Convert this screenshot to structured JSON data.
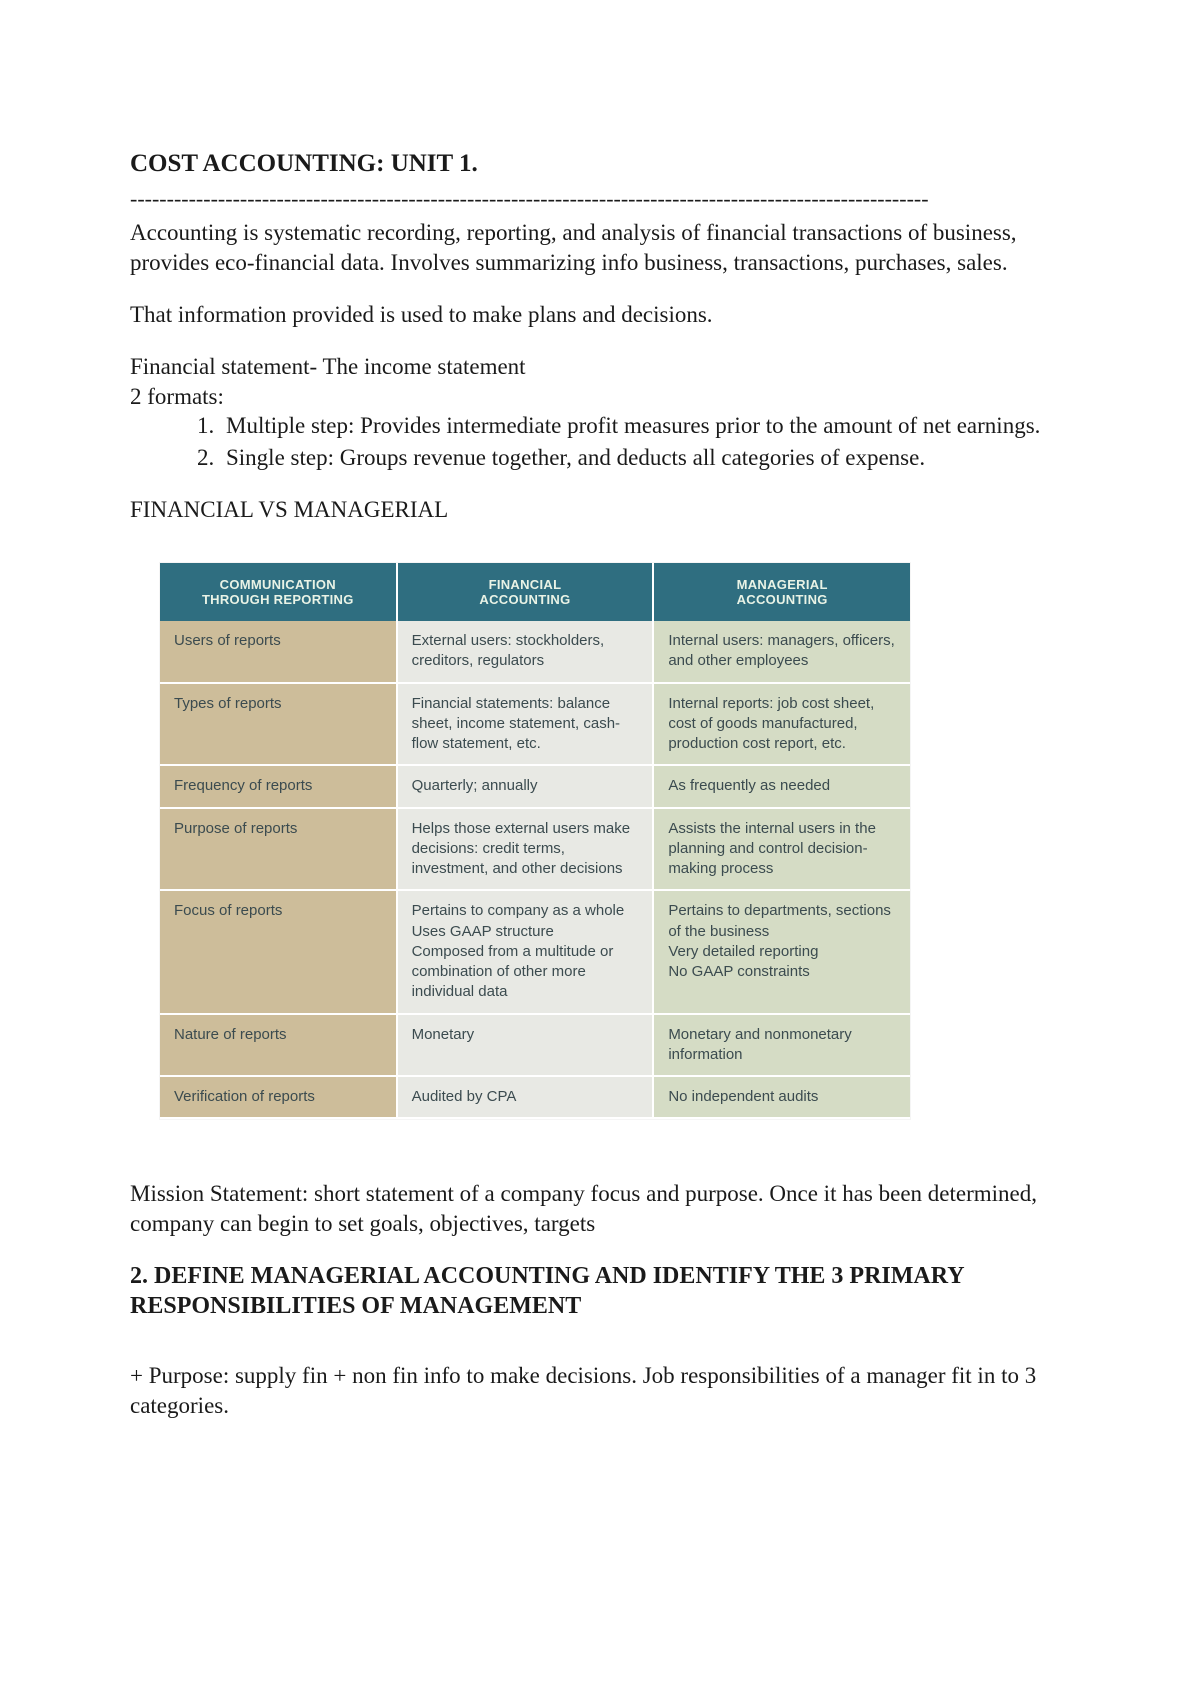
{
  "doc": {
    "title": "COST ACCOUNTING: UNIT 1.",
    "dashline": "-------------------------------------------------------------------------------------------------------------",
    "intro": "Accounting is systematic recording, reporting, and analysis of financial transactions of business, provides eco-financial data. Involves summarizing info business, transactions, purchases, sales.",
    "use_line": "That information provided is used to make plans and decisions.",
    "fs_line1": "Financial statement- The income statement",
    "fs_line2": "2 formats:",
    "formats": [
      "Multiple step: Provides intermediate profit measures prior to the amount of net earnings.",
      "Single step: Groups revenue together, and deducts all categories of expense."
    ],
    "section_caps": "FINANCIAL VS MANAGERIAL",
    "mission": "Mission Statement: short statement of a company focus and purpose. Once it has been determined, company can begin to set goals, objectives, targets",
    "heading2": "2.  DEFINE MANAGERIAL ACCOUNTING AND IDENTIFY THE 3 PRIMARY RESPONSIBILITIES OF MANAGEMENT",
    "purpose": "+ Purpose: supply fin + non fin info to make decisions. Job responsibilities of a manager fit in to 3 categories."
  },
  "table": {
    "headers": {
      "col1a": "COMMUNICATION",
      "col1b": "THROUGH REPORTING",
      "col2a": "FINANCIAL",
      "col2b": "ACCOUNTING",
      "col3a": "MANAGERIAL",
      "col3b": "ACCOUNTING"
    },
    "header_bg": "#2f6e80",
    "col_colors": {
      "a": "#cdbd9a",
      "b": "#e8e9e4",
      "c": "#d5dcc5"
    },
    "rows": [
      {
        "a": "Users of reports",
        "b": "External users: stockholders, creditors, regulators",
        "c": "Internal users: managers, officers, and other employees"
      },
      {
        "a": "Types of reports",
        "b": "Financial statements: balance sheet, income statement, cash-flow statement, etc.",
        "c": "Internal reports: job cost sheet, cost of goods manufactured, production cost report, etc."
      },
      {
        "a": "Frequency of reports",
        "b": "Quarterly; annually",
        "c": "As frequently as needed"
      },
      {
        "a": "Purpose of reports",
        "b": "Helps those external users make decisions: credit terms, investment, and other decisions",
        "c": "Assists the internal users in the planning and control decision-making process"
      },
      {
        "a": "Focus of reports",
        "b": "Pertains to company as a whole\nUses GAAP structure\nComposed from a multitude or combination of other more individual data",
        "c": "Pertains to departments, sections of the business\nVery detailed reporting\nNo GAAP constraints"
      },
      {
        "a": "Nature of reports",
        "b": "Monetary",
        "c": "Monetary and nonmonetary information"
      },
      {
        "a": "Verification of reports",
        "b": "Audited by CPA",
        "c": "No independent audits"
      }
    ]
  }
}
